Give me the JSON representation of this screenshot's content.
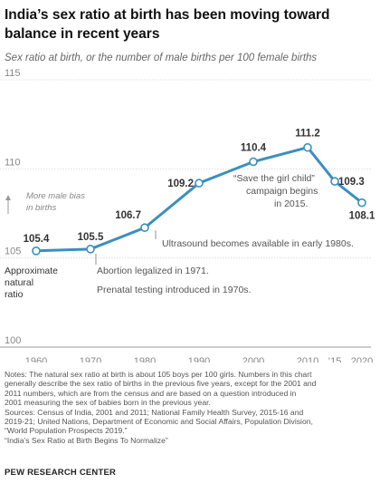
{
  "title": "India’s sex ratio at birth has been moving toward balance in recent years",
  "subtitle": "Sex ratio at birth, or the number of male births per 100 female births",
  "chart_data": {
    "type": "line",
    "x": [
      1960,
      1970,
      1980,
      1990,
      2000,
      2010,
      2015,
      2020
    ],
    "series": [
      {
        "values": [
          105.4,
          105.5,
          106.7,
          109.2,
          110.4,
          111.2,
          109.3,
          108.1
        ]
      }
    ],
    "point_labels": [
      "105.4",
      "105.5",
      "106.7",
      "109.2",
      "110.4",
      "111.2",
      "109.3",
      "108.1"
    ],
    "x_tick_labels": [
      "1960",
      "1970",
      "1980",
      "1990",
      "2000",
      "2010",
      "’15",
      "2020"
    ],
    "y_ticks": [
      100,
      105,
      110,
      115
    ],
    "ylim": [
      100,
      115
    ],
    "xlim": [
      1960,
      2020
    ],
    "grid": true,
    "color": "#3a8fbf",
    "annotations": {
      "male_bias": [
        "More male bias",
        "in births"
      ],
      "approx_natural": [
        "Approximate",
        "natural",
        "ratio"
      ],
      "abortion": "Abortion legalized in 1971.",
      "prenatal": "Prenatal testing introduced in 1970s.",
      "ultrasound": "Ultrasound becomes available in early 1980s.",
      "save_girl": [
        "“Save the girl child”",
        "campaign begins",
        "in 2015."
      ]
    }
  },
  "notes": [
    "Notes: The natural sex ratio at birth is about 105 boys per 100 girls. Numbers in this chart",
    "generally describe the sex ratio of births in the previous five years, except for the 2001 and",
    "2011 numbers, which are from the census and are based on a question introduced in",
    "2001 measuring the sex of babies born in the previous year.",
    "Sources: Census of India, 2001 and 2011; National Family Health Survey, 2015-16 and",
    "2019-21; United Nations, Department of Economic and Social Affairs, Population Division,",
    "“World Population Prospects 2019.”",
    "“India’s Sex Ratio at Birth Begins To Normalize”"
  ],
  "credit": "PEW RESEARCH CENTER"
}
